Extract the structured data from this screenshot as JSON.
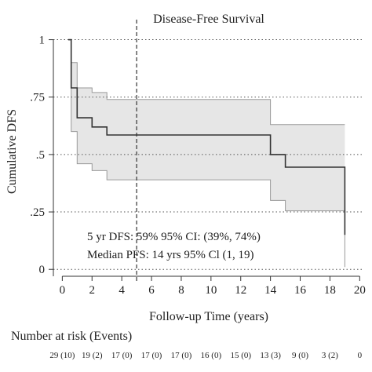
{
  "chart_data": {
    "type": "line",
    "title": "Disease-Free Survival",
    "xlabel": "Follow-up Time (years)",
    "ylabel": "Cumulative DFS",
    "xlim": [
      -0.6,
      20.3
    ],
    "ylim": [
      -0.03,
      1.06
    ],
    "x_ticks": [
      0,
      2,
      4,
      6,
      8,
      10,
      12,
      14,
      16,
      18,
      20
    ],
    "y_ticks": [
      {
        "value": 0,
        "label": "0"
      },
      {
        "value": 0.25,
        "label": ".25"
      },
      {
        "value": 0.5,
        "label": ".5"
      },
      {
        "value": 0.75,
        "label": ".75"
      },
      {
        "value": 1,
        "label": "1"
      }
    ],
    "grid": "horizontal dotted at y ticks",
    "reference_line": {
      "x": 5,
      "style": "dashed vertical"
    },
    "series": [
      {
        "role": "survival_estimate",
        "color": "#333333",
        "x": [
          0.4,
          0.6,
          1.0,
          2.0,
          3.0,
          5.0,
          14.0,
          15.0,
          19.0
        ],
        "y": [
          1.0,
          0.79,
          0.66,
          0.62,
          0.585,
          0.585,
          0.5,
          0.445,
          0.15
        ]
      },
      {
        "role": "ci_upper",
        "x": [
          0.4,
          0.6,
          1.0,
          2.0,
          3.0,
          5.0,
          14.0,
          15.0,
          19.0
        ],
        "y": [
          1.0,
          0.9,
          0.79,
          0.77,
          0.74,
          0.74,
          0.63,
          0.63,
          0.63
        ]
      },
      {
        "role": "ci_lower",
        "x": [
          0.4,
          0.6,
          1.0,
          2.0,
          3.0,
          5.0,
          14.0,
          15.0,
          19.0
        ],
        "y": [
          1.0,
          0.6,
          0.46,
          0.43,
          0.39,
          0.39,
          0.3,
          0.255,
          0.01
        ]
      }
    ],
    "annotations": [
      "5 yr DFS: 59% 95% CI: (39%, 74%)",
      "Median PFS: 14 yrs 95% Cl (1, 19)"
    ],
    "risk_table": {
      "title": "Number at risk (Events)",
      "values": [
        "29 (10)",
        "19 (2)",
        "17 (0)",
        "17 (0)",
        "17 (0)",
        "16 (0)",
        "15 (0)",
        "13 (3)",
        "9 (0)",
        "3 (2)",
        "0"
      ]
    },
    "colors": {
      "line": "#333333",
      "band": "#e6e6e6",
      "band_edge": "#9a9a9a",
      "grid": "#555555"
    }
  }
}
